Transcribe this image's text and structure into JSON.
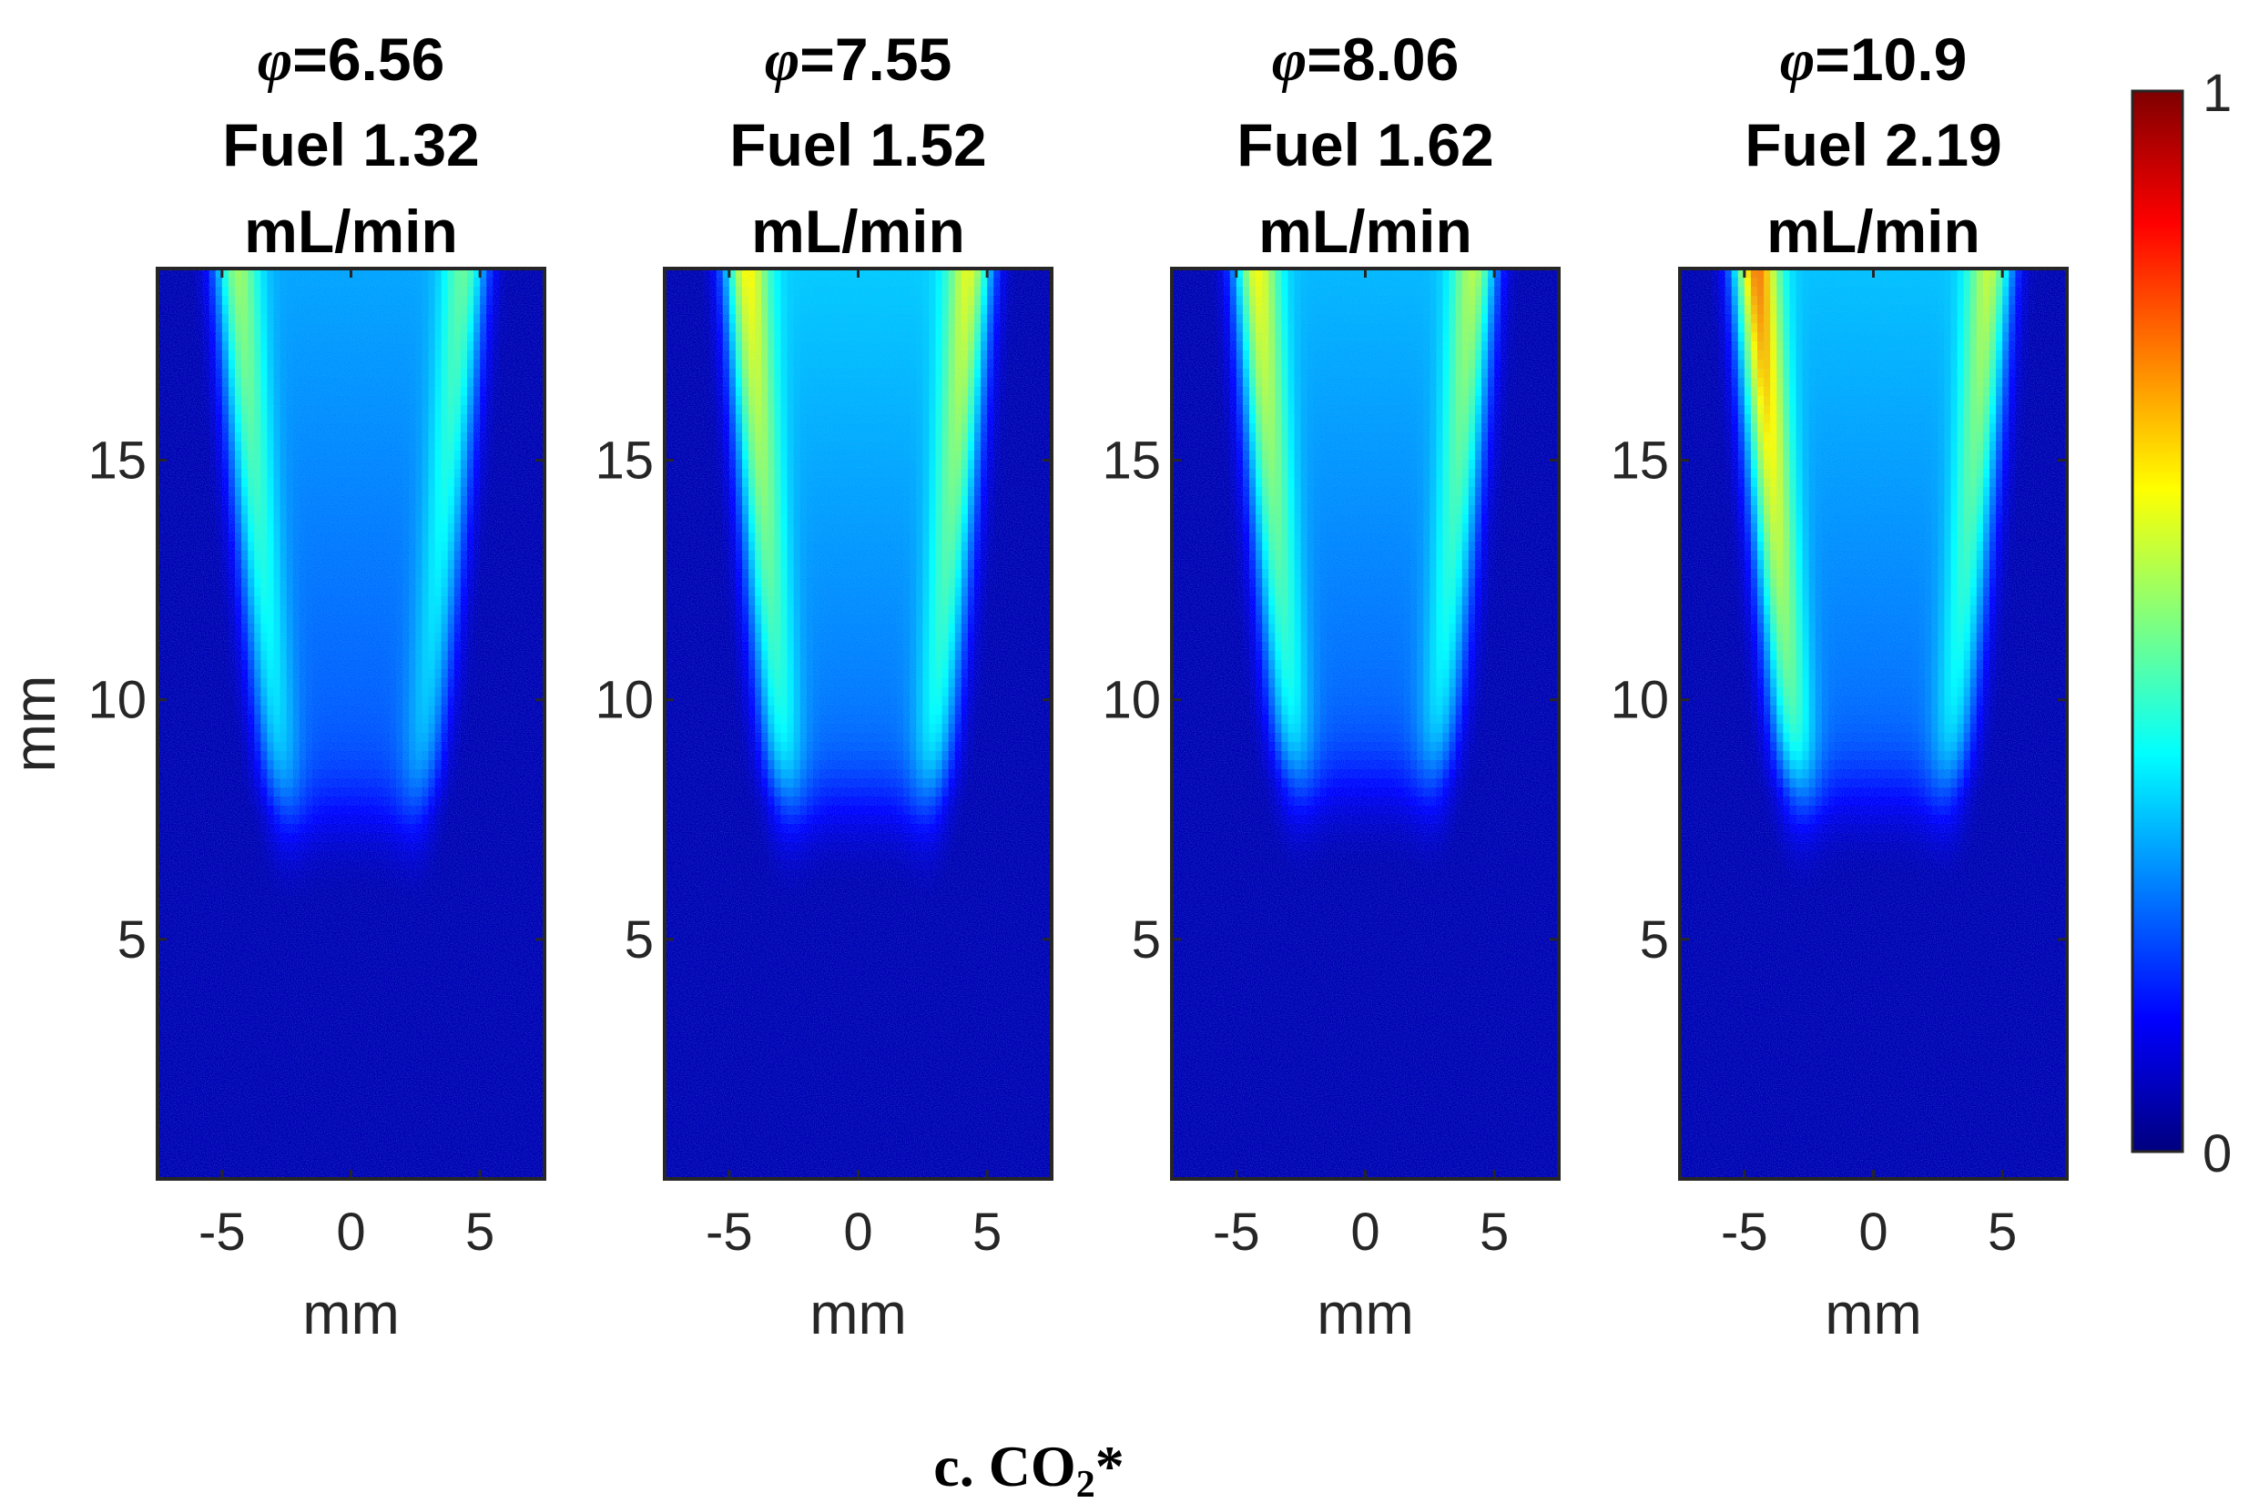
{
  "chart_data": {
    "type": "heatmap",
    "caption": {
      "prefix": "c. CO",
      "subscript": "2",
      "suffix": "*"
    },
    "colorbar": {
      "min": 0,
      "max": 1,
      "min_label": "0",
      "max_label": "1",
      "colormap": "jet",
      "stops": [
        "#00007f",
        "#0000ff",
        "#007fff",
        "#00ffff",
        "#7fff7f",
        "#ffff00",
        "#ff7f00",
        "#ff0000",
        "#7f0000"
      ]
    },
    "x_range": [
      -7.5,
      7.5
    ],
    "y_range": [
      0,
      19
    ],
    "x_ticks": [
      -5,
      0,
      5
    ],
    "y_ticks": [
      5,
      10,
      15
    ],
    "xlabel": "mm",
    "ylabel": "mm",
    "panels": [
      {
        "phi_symbol": "φ",
        "phi_value": "=6.56",
        "fuel_line": "Fuel 1.32",
        "unit_line": "mL/min",
        "peak_left": 0.48,
        "peak_right": 0.42,
        "core_level": 0.26,
        "edge_x_top": 4.5,
        "edge_x_bottom": 2.6,
        "flame_tip_y": 7.6
      },
      {
        "phi_symbol": "φ",
        "phi_value": "=7.55",
        "fuel_line": "Fuel 1.52",
        "unit_line": "mL/min",
        "peak_left": 0.58,
        "peak_right": 0.55,
        "core_level": 0.3,
        "edge_x_top": 4.4,
        "edge_x_bottom": 2.8,
        "flame_tip_y": 7.8
      },
      {
        "phi_symbol": "φ",
        "phi_value": "=8.06",
        "fuel_line": "Fuel 1.62",
        "unit_line": "mL/min",
        "peak_left": 0.57,
        "peak_right": 0.5,
        "core_level": 0.28,
        "edge_x_top": 4.3,
        "edge_x_bottom": 2.7,
        "flame_tip_y": 8.2
      },
      {
        "phi_symbol": "φ",
        "phi_value": "=10.9",
        "fuel_line": "Fuel 2.19",
        "unit_line": "mL/min",
        "peak_left": 0.72,
        "peak_right": 0.52,
        "core_level": 0.29,
        "edge_x_top": 4.6,
        "edge_x_bottom": 2.9,
        "flame_tip_y": 8.0
      }
    ]
  }
}
